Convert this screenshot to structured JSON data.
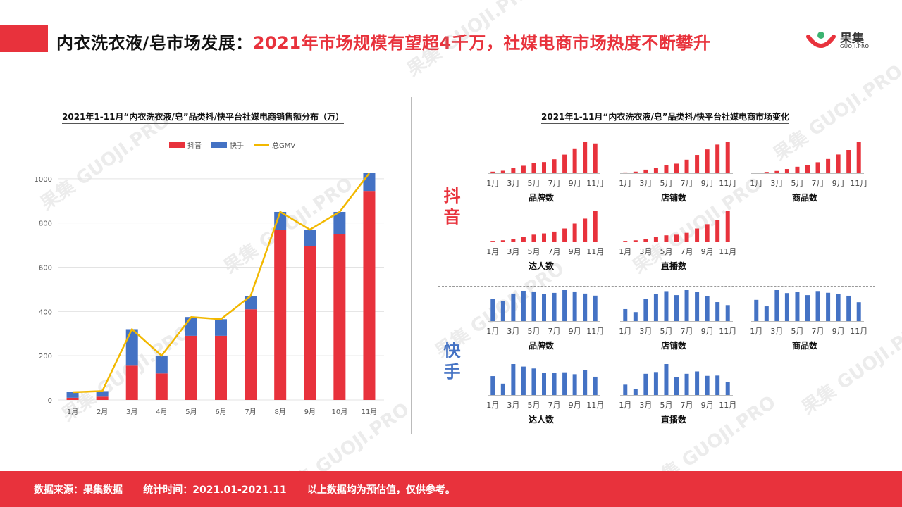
{
  "header": {
    "title_prefix": "内衣洗衣液/皂市场发展：",
    "title_highlight": "2021年市场规模有望超4千万，社媒电商市场热度不断攀升",
    "logo_text": "果集",
    "logo_sub": "GUOJI.PRO"
  },
  "watermark": {
    "text": "果集",
    "sub": "GUOJI.PRO"
  },
  "left_chart_title": "2021年1-11月“内衣洗衣液/皂”品类抖/快平台社媒电商销售额分布（万）",
  "right_chart_title": "2021年1-11月“内衣洗衣液/皂”品类抖/快平台社媒电商市场变化",
  "section_labels": {
    "douyin": "抖音",
    "kuaishou": "快手"
  },
  "colors": {
    "douyin": "#e8323c",
    "kuaishou": "#4472c4",
    "gmv": "#f2b800"
  },
  "footer": {
    "text": "数据来源：果集数据      统计时间：2021.01-2021.11      以上数据均为预估值，仅供参考。"
  },
  "chart_data": [
    {
      "type": "bar",
      "stacked": true,
      "title": "2021年1-11月“内衣洗衣液/皂”品类抖/快平台社媒电商销售额分布（万）",
      "categories": [
        "1月",
        "2月",
        "3月",
        "4月",
        "5月",
        "6月",
        "7月",
        "8月",
        "9月",
        "10月",
        "11月"
      ],
      "series": [
        {
          "name": "抖音",
          "values": [
            10,
            15,
            155,
            120,
            290,
            290,
            410,
            770,
            695,
            750,
            945
          ]
        },
        {
          "name": "快手",
          "values": [
            25,
            25,
            165,
            80,
            85,
            75,
            60,
            80,
            75,
            100,
            80
          ]
        },
        {
          "name": "总GMV",
          "type": "line",
          "values": [
            35,
            40,
            320,
            200,
            375,
            365,
            470,
            850,
            770,
            850,
            1025
          ]
        }
      ],
      "yticks": [
        0,
        200,
        400,
        600,
        800,
        1000
      ],
      "ylim": [
        0,
        1060
      ],
      "legend": "top"
    },
    {
      "type": "bar",
      "platform": "抖音",
      "title": "品牌数",
      "categories": [
        "1月",
        "2月",
        "3月",
        "4月",
        "5月",
        "6月",
        "7月",
        "8月",
        "9月",
        "10月",
        "11月"
      ],
      "xticks": [
        "1月",
        "3月",
        "5月",
        "7月",
        "9月",
        "11月"
      ],
      "values": [
        5,
        8,
        18,
        24,
        32,
        36,
        45,
        60,
        80,
        100,
        96
      ]
    },
    {
      "type": "bar",
      "platform": "抖音",
      "title": "店铺数",
      "categories": [
        "1月",
        "2月",
        "3月",
        "4月",
        "5月",
        "6月",
        "7月",
        "8月",
        "9月",
        "10月",
        "11月"
      ],
      "xticks": [
        "1月",
        "3月",
        "5月",
        "7月",
        "9月",
        "11月"
      ],
      "values": [
        2,
        4,
        9,
        14,
        20,
        24,
        34,
        46,
        60,
        72,
        78
      ]
    },
    {
      "type": "bar",
      "platform": "抖音",
      "title": "商品数",
      "categories": [
        "1月",
        "2月",
        "3月",
        "4月",
        "5月",
        "6月",
        "7月",
        "8月",
        "9月",
        "10月",
        "11月"
      ],
      "xticks": [
        "1月",
        "3月",
        "5月",
        "7月",
        "9月",
        "11月"
      ],
      "values": [
        2,
        4,
        7,
        13,
        20,
        26,
        34,
        44,
        58,
        72,
        96
      ]
    },
    {
      "type": "bar",
      "platform": "抖音",
      "title": "达人数",
      "categories": [
        "1月",
        "2月",
        "3月",
        "4月",
        "5月",
        "6月",
        "7月",
        "8月",
        "9月",
        "10月",
        "11月"
      ],
      "xticks": [
        "1月",
        "3月",
        "5月",
        "7月",
        "9月",
        "11月"
      ],
      "values": [
        2,
        4,
        8,
        14,
        22,
        26,
        32,
        42,
        58,
        74,
        100
      ]
    },
    {
      "type": "bar",
      "platform": "抖音",
      "title": "直播数",
      "categories": [
        "1月",
        "2月",
        "3月",
        "4月",
        "5月",
        "6月",
        "7月",
        "8月",
        "9月",
        "10月",
        "11月"
      ],
      "xticks": [
        "1月",
        "3月",
        "5月",
        "7月",
        "9月",
        "11月"
      ],
      "values": [
        2,
        4,
        9,
        14,
        20,
        22,
        28,
        42,
        56,
        70,
        100
      ]
    },
    {
      "type": "bar",
      "platform": "快手",
      "title": "品牌数",
      "categories": [
        "1月",
        "2月",
        "3月",
        "4月",
        "5月",
        "6月",
        "7月",
        "8月",
        "9月",
        "10月",
        "11月"
      ],
      "xticks": [
        "1月",
        "3月",
        "5月",
        "7月",
        "9月",
        "11月"
      ],
      "values": [
        65,
        58,
        80,
        88,
        86,
        78,
        82,
        90,
        86,
        80,
        74
      ]
    },
    {
      "type": "bar",
      "platform": "快手",
      "title": "店铺数",
      "categories": [
        "1月",
        "2月",
        "3月",
        "4月",
        "5月",
        "6月",
        "7月",
        "8月",
        "9月",
        "10月",
        "11月"
      ],
      "xticks": [
        "1月",
        "3月",
        "5月",
        "7月",
        "9月",
        "11月"
      ],
      "values": [
        24,
        18,
        45,
        54,
        60,
        52,
        62,
        58,
        50,
        38,
        32
      ]
    },
    {
      "type": "bar",
      "platform": "快手",
      "title": "商品数",
      "categories": [
        "1月",
        "2月",
        "3月",
        "4月",
        "5月",
        "6月",
        "7月",
        "8月",
        "9月",
        "10月",
        "11月"
      ],
      "xticks": [
        "1月",
        "3月",
        "5月",
        "7月",
        "9月",
        "11月"
      ],
      "values": [
        72,
        50,
        105,
        95,
        98,
        88,
        102,
        96,
        92,
        86,
        64
      ]
    },
    {
      "type": "bar",
      "platform": "快手",
      "title": "达人数",
      "categories": [
        "1月",
        "2月",
        "3月",
        "4月",
        "5月",
        "6月",
        "7月",
        "8月",
        "9月",
        "10月",
        "11月"
      ],
      "xticks": [
        "1月",
        "3月",
        "5月",
        "7月",
        "9月",
        "11月"
      ],
      "values": [
        60,
        36,
        98,
        90,
        84,
        70,
        70,
        72,
        66,
        78,
        58
      ]
    },
    {
      "type": "bar",
      "platform": "快手",
      "title": "直播数",
      "categories": [
        "1月",
        "2月",
        "3月",
        "4月",
        "5月",
        "6月",
        "7月",
        "8月",
        "9月",
        "10月",
        "11月"
      ],
      "xticks": [
        "1月",
        "3月",
        "5月",
        "7月",
        "9月",
        "11月"
      ],
      "values": [
        35,
        20,
        72,
        78,
        105,
        62,
        72,
        80,
        65,
        66,
        45
      ]
    }
  ]
}
